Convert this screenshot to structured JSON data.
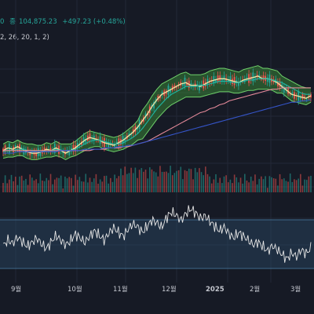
{
  "legend": {
    "price_tail": "0",
    "close_label": "종",
    "close_value": "104,875.23",
    "change": "+497.23 (+0.48%)",
    "indicator_params": "2, 26, 20, 1, 2)"
  },
  "colors": {
    "background": "#161a25",
    "grid": "#232837",
    "candle_up": "#26a69a",
    "candle_down": "#ef5350",
    "band_fill": "#3d9a3a",
    "band_edge": "#6fd06a",
    "ma_fast": "#f2e7a2",
    "ma_mid": "#1fb6a3",
    "ma_slow": "#e58a9a",
    "ma_long": "#3555c9",
    "osc_line": "#e6e6e6",
    "osc_band": "#2a4a66",
    "axis_text": "#c3c6ce"
  },
  "chart_data": {
    "type": "line",
    "x_axis_labels": [
      "9월",
      "10월",
      "11월",
      "12월",
      "2025",
      "2월",
      "3월"
    ],
    "panels": [
      {
        "name": "price",
        "series": [
          {
            "values": [
              72,
              74,
              73,
              75,
              73,
              71,
              70,
              70,
              71,
              73,
              72,
              74,
              72,
              70,
              72,
              74,
              77,
              80,
              82,
              81,
              80,
              78,
              77,
              76,
              78,
              80,
              83,
              86,
              90,
              95,
              100,
              106,
              111,
              115,
              117,
              119,
              121,
              123,
              124,
              122,
              122,
              121,
              123,
              125,
              126,
              127,
              127,
              126,
              125,
              124,
              126,
              127,
              128,
              129,
              127,
              127,
              126,
              124,
              121,
              118,
              115,
              114,
              113,
              112,
              114
            ]
          },
          {
            "values": [
              71,
              72,
              72,
              73,
              73,
              72,
              72,
              71,
              71,
              72,
              72,
              73,
              72,
              72,
              72,
              73,
              75,
              77,
              79,
              80,
              80,
              79,
              78,
              77,
              77,
              78,
              80,
              82,
              85,
              89,
              94,
              99,
              104,
              108,
              112,
              115,
              117,
              119,
              121,
              121,
              121,
              122,
              122,
              123,
              124,
              125,
              125,
              125,
              124,
              124,
              125,
              126,
              126,
              127,
              127,
              127,
              126,
              125,
              124,
              122,
              120,
              118,
              116,
              115,
              115
            ]
          },
          {
            "values": [
              71,
              71,
              72,
              72,
              72,
              72,
              72,
              72,
              72,
              72,
              72,
              72,
              72,
              72,
              72,
              72,
              73,
              74,
              75,
              76,
              77,
              77,
              77,
              77,
              77,
              77,
              78,
              79,
              80,
              82,
              85,
              88,
              91,
              95,
              99,
              102,
              105,
              108,
              111,
              113,
              115,
              116,
              117,
              118,
              119,
              120,
              120,
              121,
              121,
              122,
              122,
              123,
              123,
              124,
              124,
              124,
              124,
              124,
              123,
              122,
              121,
              120,
              119,
              118,
              117
            ]
          },
          {
            "values": [
              72,
              72,
              72,
              72,
              72,
              72,
              72,
              72,
              72,
              72,
              72,
              72,
              72,
              72,
              72,
              72,
              72,
              72,
              72,
              73,
              73,
              73,
              74,
              74,
              74,
              75,
              75,
              76,
              77,
              78,
              79,
              81,
              83,
              85,
              87,
              89,
              91,
              93,
              95,
              97,
              99,
              101,
              102,
              104,
              105,
              107,
              108,
              110,
              111,
              112,
              113,
              114,
              115,
              116,
              117,
              118,
              119,
              119,
              120,
              120,
              120,
              120,
              120,
              120,
              120
            ]
          },
          {
            "values": [
              70,
              70,
              70,
              71,
              71,
              71,
              71,
              71,
              71,
              71,
              71,
              71,
              72,
              72,
              72,
              72,
              72,
              73,
              73,
              73,
              73,
              74,
              74,
              74,
              75,
              75,
              76,
              76,
              77,
              78,
              79,
              80,
              81,
              82,
              83,
              84,
              85,
              86,
              87,
              88,
              89,
              90,
              91,
              92,
              93,
              94,
              95,
              96,
              97,
              98,
              99,
              100,
              101,
              102,
              103,
              104,
              105,
              106,
              107,
              108,
              109,
              109,
              110,
              110,
              111
            ]
          }
        ]
      },
      {
        "name": "oscillator",
        "ylim": [
          0,
          100
        ],
        "series": [
          {
            "values": [
              45,
              52,
              48,
              56,
              50,
              44,
              49,
              55,
              47,
              41,
              50,
              58,
              52,
              46,
              51,
              60,
              55,
              49,
              57,
              64,
              58,
              52,
              61,
              68,
              62,
              57,
              66,
              73,
              69,
              62,
              70,
              78,
              74,
              68,
              81,
              88,
              84,
              77,
              86,
              92,
              87,
              80,
              83,
              76,
              70,
              64,
              69,
              60,
              55,
              62,
              57,
              52,
              46,
              50,
              44,
              38,
              45,
              40,
              34,
              28,
              36,
              31,
              40,
              35,
              42
            ]
          }
        ]
      }
    ]
  }
}
